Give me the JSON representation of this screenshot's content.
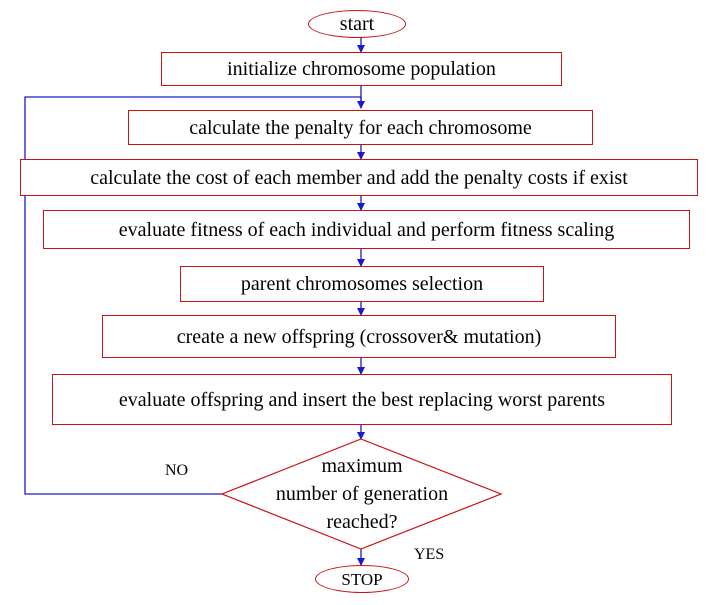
{
  "start": "start",
  "steps": [
    "initialize chromosome population",
    "calculate the penalty for each chromosome",
    "calculate the cost of each member and add the penalty costs if exist",
    "evaluate fitness of each individual and perform fitness scaling",
    "parent chromosomes selection",
    "create a new offspring (crossover& mutation)",
    "evaluate offspring and insert the best replacing worst parents"
  ],
  "decision": [
    "maximum",
    "number of generation",
    "reached?"
  ],
  "no_label": "NO",
  "yes_label": "YES",
  "stop": "STOP",
  "colors": {
    "box_border": "#cc1111",
    "arrow": "#1a1acc"
  }
}
